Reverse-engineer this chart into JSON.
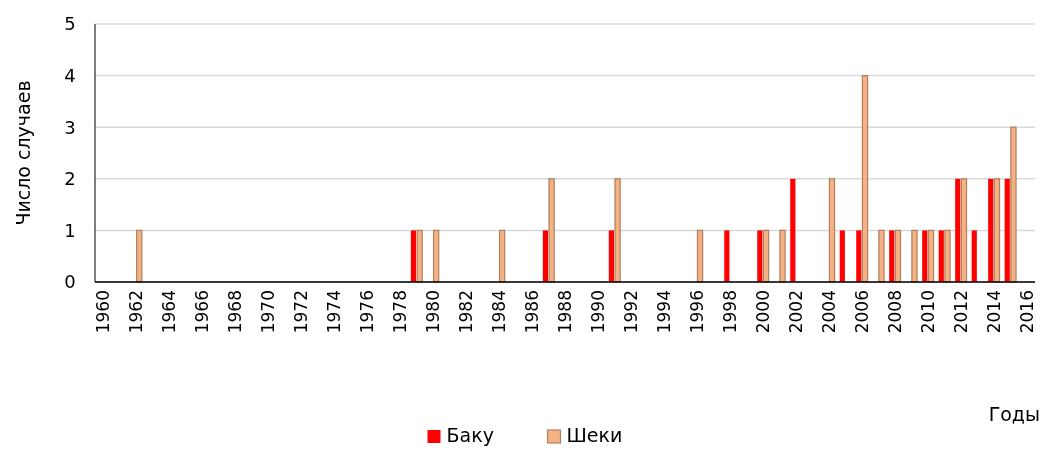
{
  "chart_data": {
    "type": "bar",
    "xlabel": "Годы",
    "ylabel": "Число случаев",
    "categories": [
      "1960",
      null,
      "1962",
      null,
      "1964",
      null,
      "1966",
      null,
      "1968",
      null,
      "1970",
      null,
      "1972",
      null,
      "1974",
      null,
      "1976",
      null,
      "1978",
      null,
      "1980",
      null,
      "1982",
      null,
      "1984",
      null,
      "1986",
      null,
      "1988",
      null,
      "1990",
      null,
      "1992",
      null,
      "1994",
      null,
      "1996",
      null,
      "1998",
      null,
      "2000",
      null,
      "2002",
      null,
      "2004",
      null,
      "2006",
      null,
      "2008",
      null,
      "2010",
      null,
      "2012",
      null,
      "2014",
      null,
      "2016"
    ],
    "series": [
      {
        "name": "Баку",
        "color": "#ff0000",
        "values": [
          0,
          0,
          0,
          0,
          0,
          0,
          0,
          0,
          0,
          0,
          0,
          0,
          0,
          0,
          0,
          0,
          0,
          0,
          0,
          1,
          0,
          0,
          0,
          0,
          0,
          0,
          0,
          1,
          0,
          0,
          0,
          1,
          0,
          0,
          0,
          0,
          0,
          0,
          1,
          0,
          1,
          0,
          2,
          0,
          0,
          1,
          1,
          0,
          1,
          0,
          1,
          1,
          2,
          1,
          2,
          2,
          0
        ]
      },
      {
        "name": "Шеки",
        "color": "#f4b183",
        "values": [
          0,
          0,
          1,
          0,
          0,
          0,
          0,
          0,
          0,
          0,
          0,
          0,
          0,
          0,
          0,
          0,
          0,
          0,
          0,
          1,
          1,
          0,
          0,
          0,
          1,
          0,
          0,
          2,
          0,
          0,
          0,
          2,
          0,
          0,
          0,
          0,
          1,
          0,
          0,
          0,
          1,
          1,
          0,
          0,
          2,
          0,
          4,
          1,
          1,
          1,
          1,
          1,
          2,
          0,
          2,
          3,
          0
        ]
      }
    ],
    "ylim": [
      0,
      5
    ],
    "yticks": [
      0,
      1,
      2,
      3,
      4,
      5
    ],
    "grid": "y",
    "legend": "bottom"
  }
}
